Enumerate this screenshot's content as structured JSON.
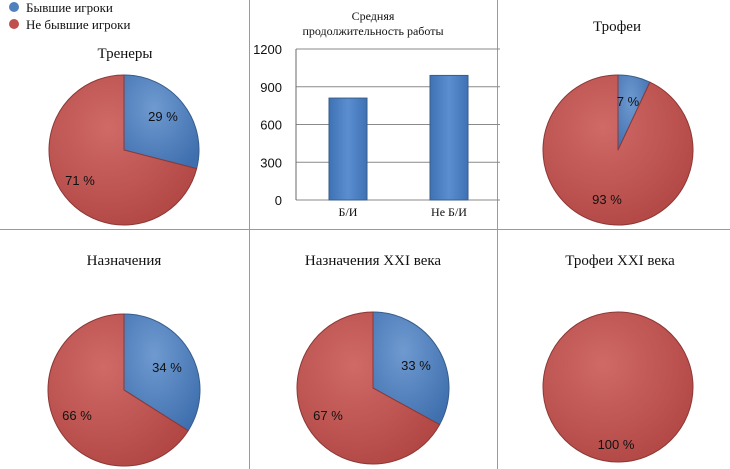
{
  "legend": {
    "items": [
      {
        "label": "Бывшие игроки",
        "color": "#4F81BD"
      },
      {
        "label": "Не бывшие игроки",
        "color": "#C0504D"
      }
    ]
  },
  "colors": {
    "former": "#4F81BD",
    "nonformer": "#C0504D",
    "grid": "#999999"
  },
  "chart_data": [
    {
      "id": "trainers",
      "type": "pie",
      "title": "Тренеры",
      "slices": [
        {
          "name": "Бывшие игроки",
          "value": 29,
          "label": "29 %"
        },
        {
          "name": "Не бывшие игроки",
          "value": 71,
          "label": "71 %"
        }
      ]
    },
    {
      "id": "tenure",
      "type": "bar",
      "title_lines": [
        "Средняя",
        "продолжительность работы"
      ],
      "categories": [
        "Б/И",
        "Не Б/И"
      ],
      "values": [
        810,
        990
      ],
      "ylim": [
        0,
        1200
      ],
      "yticks": [
        0,
        300,
        600,
        900,
        1200
      ],
      "ytick_labels": [
        "0",
        "300",
        "600",
        "900",
        "1200"
      ]
    },
    {
      "id": "trophies",
      "type": "pie",
      "title": "Трофеи",
      "slices": [
        {
          "name": "Бывшие игроки",
          "value": 7,
          "label": "7 %"
        },
        {
          "name": "Не бывшие игроки",
          "value": 93,
          "label": "93 %"
        }
      ]
    },
    {
      "id": "appointments",
      "type": "pie",
      "title": "Назначения",
      "slices": [
        {
          "name": "Бывшие игроки",
          "value": 34,
          "label": "34 %"
        },
        {
          "name": "Не бывшие игроки",
          "value": 66,
          "label": "66 %"
        }
      ]
    },
    {
      "id": "appointments21",
      "type": "pie",
      "title": "Назначения XXI века",
      "slices": [
        {
          "name": "Бывшие игроки",
          "value": 33,
          "label": "33 %"
        },
        {
          "name": "Не бывшие игроки",
          "value": 67,
          "label": "67 %"
        }
      ]
    },
    {
      "id": "trophies21",
      "type": "pie",
      "title": "Трофеи XXI века",
      "slices": [
        {
          "name": "Бывшие игроки",
          "value": 0,
          "label": ""
        },
        {
          "name": "Не бывшие игроки",
          "value": 100,
          "label": "100 %"
        }
      ]
    }
  ]
}
